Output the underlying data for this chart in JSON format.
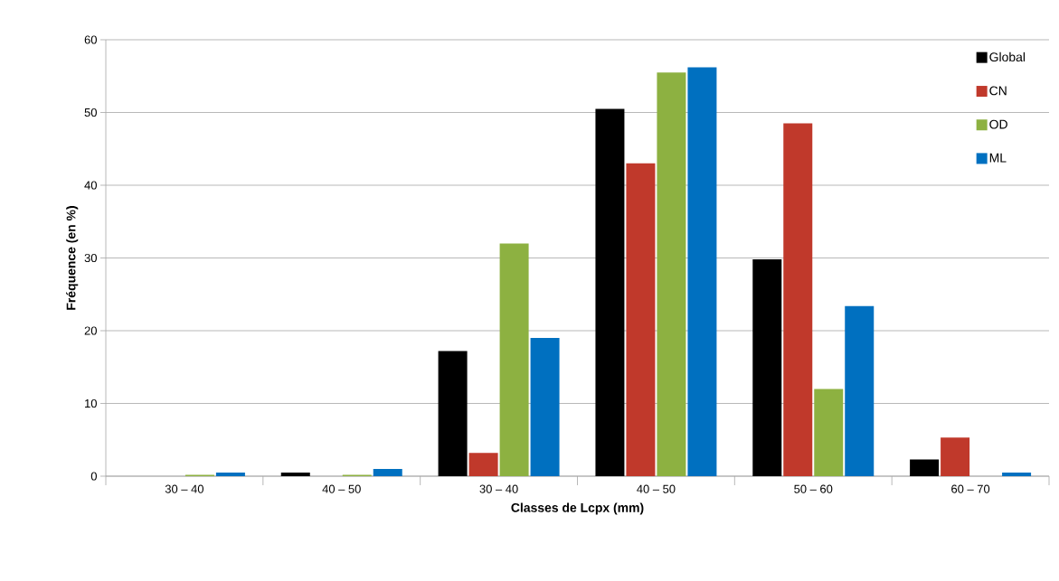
{
  "chart_data": {
    "type": "bar",
    "xlabel": "Classes de Lcpx (mm)",
    "ylabel": "Fréquence (en %)",
    "categories": [
      "30 – 40",
      "40 – 50",
      "30 – 40",
      "40 – 50",
      "50 – 60",
      "60 – 70"
    ],
    "series": [
      {
        "name": "Global",
        "color": "#000000",
        "values": [
          0,
          0.5,
          17.2,
          50.5,
          29.8,
          2.3
        ]
      },
      {
        "name": "CN",
        "color": "#c0392b",
        "values": [
          0,
          0,
          3.2,
          43,
          48.5,
          5.3
        ]
      },
      {
        "name": "OD",
        "color": "#8db141",
        "values": [
          0.2,
          0.2,
          32,
          55.5,
          12,
          0
        ]
      },
      {
        "name": "ML",
        "color": "#0070c0",
        "values": [
          0.5,
          1.0,
          19,
          56.2,
          23.4,
          0.5
        ]
      }
    ],
    "ylim": [
      0,
      60
    ],
    "yticks": [
      0,
      10,
      20,
      30,
      40,
      50,
      60
    ],
    "grid": "y",
    "legend": "top right"
  }
}
